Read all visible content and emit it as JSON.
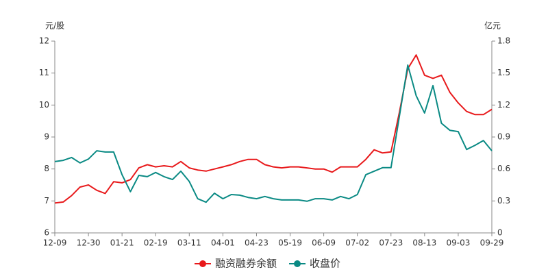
{
  "chart_data": {
    "type": "line",
    "y_label": "元/股",
    "y2_label": "亿元",
    "categories": [
      "12-09",
      null,
      null,
      null,
      "12-30",
      null,
      null,
      null,
      "01-21",
      null,
      null,
      null,
      "02-19",
      null,
      null,
      null,
      "03-11",
      null,
      null,
      null,
      "04-01",
      null,
      null,
      null,
      "04-23",
      null,
      null,
      null,
      "05-19",
      null,
      null,
      null,
      "06-09",
      null,
      null,
      null,
      "07-02",
      null,
      null,
      null,
      "07-23",
      null,
      null,
      null,
      "08-13",
      null,
      null,
      null,
      "09-03",
      null,
      null,
      null,
      "09-29"
    ],
    "series": [
      {
        "name": "融资融券余额",
        "color": "#e8191b",
        "axis": "y2",
        "values": [
          0.28,
          0.29,
          0.35,
          0.43,
          0.45,
          0.4,
          0.37,
          0.48,
          0.47,
          0.5,
          0.61,
          0.64,
          0.62,
          0.63,
          0.62,
          0.67,
          0.61,
          0.59,
          0.58,
          0.6,
          0.62,
          0.64,
          0.67,
          0.69,
          0.69,
          0.64,
          0.62,
          0.61,
          0.62,
          0.62,
          0.61,
          0.6,
          0.6,
          0.57,
          0.62,
          0.62,
          0.62,
          0.69,
          0.78,
          0.75,
          0.76,
          1.13,
          1.54,
          1.67,
          1.48,
          1.45,
          1.48,
          1.32,
          1.22,
          1.14,
          1.11,
          1.11,
          1.16
        ]
      },
      {
        "name": "收盘价",
        "color": "#0a8a84",
        "axis": "y",
        "values": [
          8.23,
          8.27,
          8.36,
          8.19,
          8.31,
          8.57,
          8.53,
          8.53,
          7.82,
          7.29,
          7.8,
          7.76,
          7.89,
          7.76,
          7.67,
          7.93,
          7.61,
          7.07,
          6.96,
          7.24,
          7.07,
          7.2,
          7.18,
          7.11,
          7.07,
          7.14,
          7.07,
          7.03,
          7.03,
          7.03,
          6.99,
          7.07,
          7.07,
          7.03,
          7.14,
          7.07,
          7.2,
          7.82,
          7.93,
          8.04,
          8.04,
          9.64,
          11.25,
          10.29,
          9.75,
          10.61,
          9.43,
          9.21,
          9.17,
          8.61,
          8.74,
          8.89,
          8.57
        ]
      }
    ],
    "ylim": [
      6,
      12
    ],
    "yticks": [
      6,
      7,
      8,
      9,
      10,
      11,
      12
    ],
    "y2lim": [
      0,
      1.8
    ],
    "y2ticks": [
      0,
      0.3,
      0.6,
      0.9,
      1.2,
      1.5,
      1.8
    ],
    "grid": false,
    "legend": "bottom"
  }
}
